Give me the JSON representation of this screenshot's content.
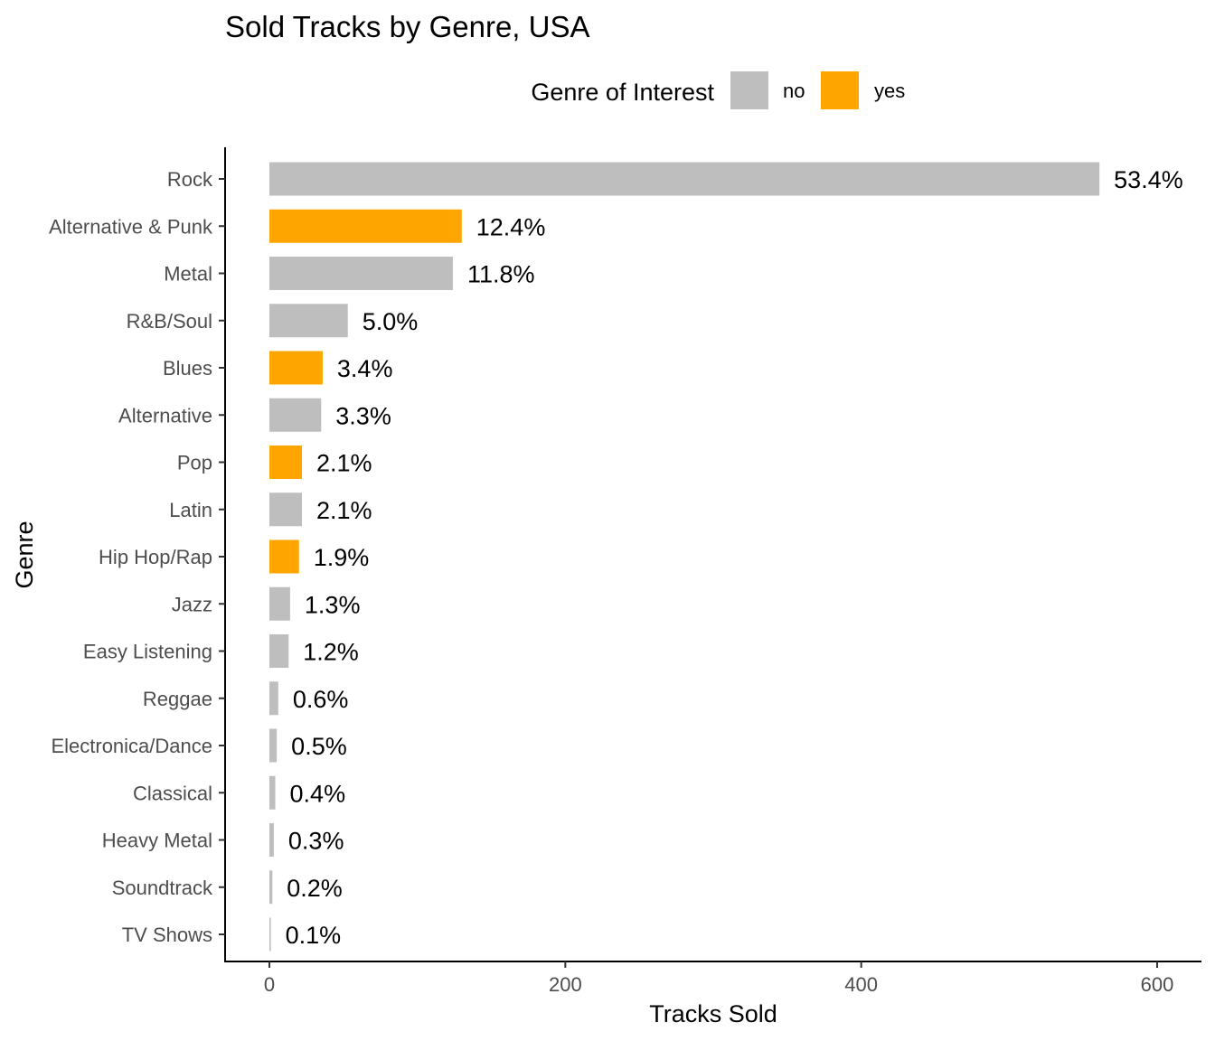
{
  "chart_data": {
    "type": "bar",
    "orientation": "horizontal",
    "title": "Sold Tracks by Genre, USA",
    "xlabel": "Tracks Sold",
    "ylabel": "Genre",
    "xlim": [
      0,
      630
    ],
    "x_ticks": [
      0,
      200,
      400,
      600
    ],
    "grid": false,
    "legend": {
      "title": "Genre of Interest",
      "position": "top",
      "entries": [
        {
          "label": "no",
          "color": "#bebebe"
        },
        {
          "label": "yes",
          "color": "#ffa500"
        }
      ]
    },
    "categories": [
      "Rock",
      "Alternative & Punk",
      "Metal",
      "R&B/Soul",
      "Blues",
      "Alternative",
      "Pop",
      "Latin",
      "Hip Hop/Rap",
      "Jazz",
      "Easy Listening",
      "Reggae",
      "Electronica/Dance",
      "Classical",
      "Heavy Metal",
      "Soundtrack",
      "TV Shows"
    ],
    "values": [
      561,
      130,
      124,
      53,
      36,
      35,
      22,
      22,
      20,
      14,
      13,
      6,
      5,
      4,
      3,
      2,
      1
    ],
    "labels": [
      "53.4%",
      "12.4%",
      "11.8%",
      "5.0%",
      "3.4%",
      "3.3%",
      "2.1%",
      "2.1%",
      "1.9%",
      "1.3%",
      "1.2%",
      "0.6%",
      "0.5%",
      "0.4%",
      "0.3%",
      "0.2%",
      "0.1%"
    ],
    "of_interest": [
      "no",
      "yes",
      "no",
      "no",
      "yes",
      "no",
      "yes",
      "no",
      "yes",
      "no",
      "no",
      "no",
      "no",
      "no",
      "no",
      "no",
      "no"
    ]
  }
}
